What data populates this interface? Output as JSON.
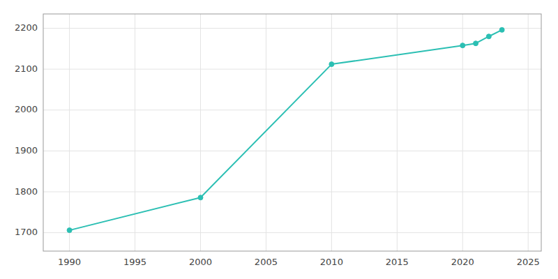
{
  "chart_data": {
    "type": "line",
    "x": [
      1990,
      2000,
      2010,
      2020,
      2021,
      2022,
      2023
    ],
    "values": [
      1706,
      1786,
      2112,
      2158,
      2163,
      2180,
      2196
    ],
    "color": "#2bbfb3",
    "marker": "circle",
    "xlim": [
      1988,
      2026
    ],
    "ylim": [
      1655,
      2235
    ],
    "xticks": [
      1990,
      1995,
      2000,
      2005,
      2010,
      2015,
      2020,
      2025
    ],
    "yticks": [
      1700,
      1800,
      1900,
      2000,
      2100,
      2200
    ],
    "grid": true
  }
}
